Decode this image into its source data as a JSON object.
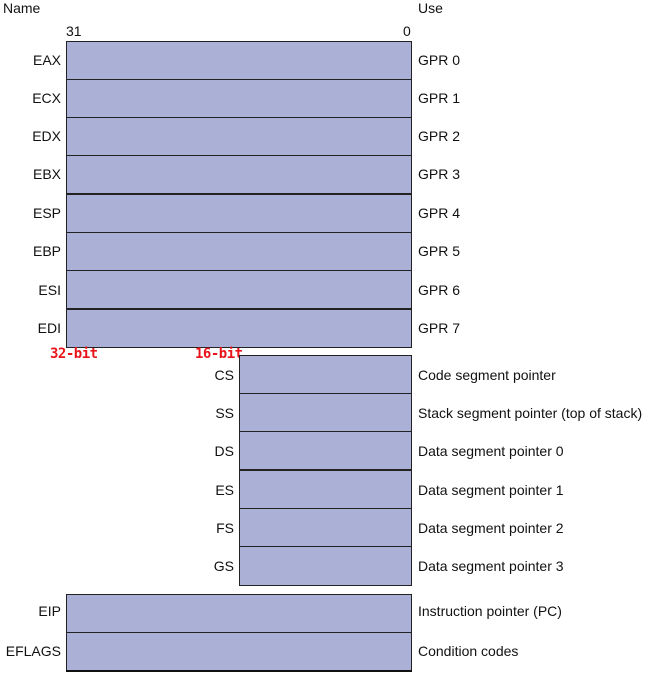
{
  "headers": {
    "name": "Name",
    "use": "Use"
  },
  "bit_labels": {
    "high": "31",
    "low": "0"
  },
  "width_labels": {
    "w32": "32-bit",
    "w16": "16-bit"
  },
  "gpr": [
    {
      "name": "EAX",
      "use": "GPR 0"
    },
    {
      "name": "ECX",
      "use": "GPR 1"
    },
    {
      "name": "EDX",
      "use": "GPR 2"
    },
    {
      "name": "EBX",
      "use": "GPR 3"
    },
    {
      "name": "ESP",
      "use": "GPR 4"
    },
    {
      "name": "EBP",
      "use": "GPR 5"
    },
    {
      "name": "ESI",
      "use": "GPR 6"
    },
    {
      "name": "EDI",
      "use": "GPR 7"
    }
  ],
  "segment": [
    {
      "name": "CS",
      "use": "Code segment pointer"
    },
    {
      "name": "SS",
      "use": "Stack segment pointer (top of stack)"
    },
    {
      "name": "DS",
      "use": "Data segment pointer 0"
    },
    {
      "name": "ES",
      "use": "Data segment pointer 1"
    },
    {
      "name": "FS",
      "use": "Data segment pointer 2"
    },
    {
      "name": "GS",
      "use": "Data segment pointer 3"
    }
  ],
  "special": [
    {
      "name": "EIP",
      "use": "Instruction pointer (PC)"
    },
    {
      "name": "EFLAGS",
      "use": "Condition codes"
    }
  ],
  "colors": {
    "register_fill": "#aab0d6",
    "annotation": "#e8161b"
  }
}
